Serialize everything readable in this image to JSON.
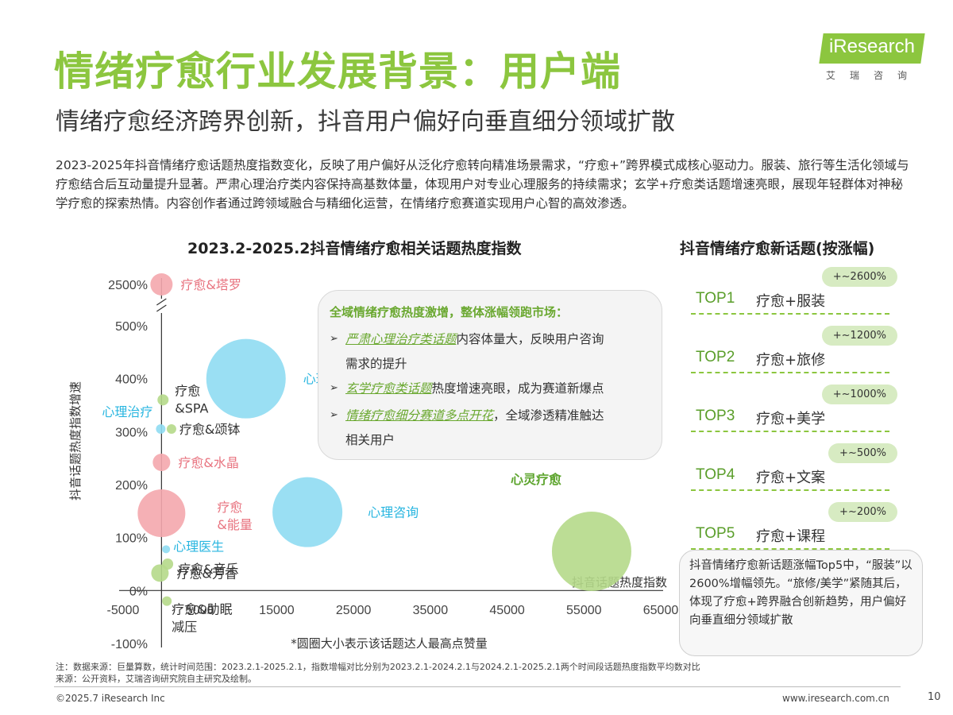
{
  "header": {
    "title": "情绪疗愈行业发展背景：用户端",
    "subtitle": "情绪疗愈经济跨界创新，抖音用户偏好向垂直细分领域扩散",
    "logo_text": "iResearch",
    "logo_sub": "艾瑞咨询"
  },
  "paragraph": "2023-2025年抖音情绪疗愈话题热度指数变化，反映了用户偏好从泛化疗愈转向精准场景需求，“疗愈+”跨界模式成核心驱动力。服装、旅行等生活化领域与疗愈结合后互动量提升显著。严肃心理治疗类内容保持高基数体量，体现用户对专业心理服务的持续需求；玄学+疗愈类话题增速亮眼，展现年轻群体对神秘学疗愈的探索热情。内容创作者通过跨领域融合与精细化运营，在情绪疗愈赛道实现用户心智的高效渗透。",
  "chart_data": {
    "type": "scatter",
    "title": "2023.2-2025.2抖音情绪疗愈相关话题热度指数",
    "xlabel": "抖音话题热度指数",
    "ylabel": "抖音话题热度指数增速",
    "x_ticks": [
      "-5000",
      "5000",
      "15000",
      "25000",
      "35000",
      "45000",
      "55000",
      "65000"
    ],
    "y_ticks": [
      "2500%",
      "500%",
      "400%",
      "300%",
      "200%",
      "100%",
      "0%",
      "-100%"
    ],
    "xlim": [
      -5000,
      65000
    ],
    "ylim": [
      -100,
      500
    ],
    "y_axis_break_top": 2500,
    "note": "*圆圈大小表示该话题达人最高点赞量",
    "colors": {
      "pink": "#f4a7ad",
      "blue": "#8fdcf2",
      "green": "#b5d98a",
      "pink_text": "#e8737f",
      "blue_text": "#29b6e0",
      "green_text": "#5ea52f"
    },
    "points": [
      {
        "label": "疗愈&塔罗",
        "x": 0,
        "y": 2500,
        "size": 14,
        "color": "pink"
      },
      {
        "label": "心理疏导",
        "x": 11000,
        "y": 400,
        "size": 50,
        "color": "blue"
      },
      {
        "label": "疗愈&SPA",
        "x": 200,
        "y": 360,
        "size": 7,
        "color": "green"
      },
      {
        "label": "心理治疗",
        "x": -100,
        "y": 305,
        "size": 6,
        "color": "blue"
      },
      {
        "label": "疗愈&颂钵",
        "x": 1300,
        "y": 305,
        "size": 6,
        "color": "green"
      },
      {
        "label": "疗愈&水晶",
        "x": 0,
        "y": 242,
        "size": 11,
        "color": "pink"
      },
      {
        "label": "疗愈&能量",
        "x": 0,
        "y": 146,
        "size": 30,
        "color": "pink"
      },
      {
        "label": "心理咨询",
        "x": 19000,
        "y": 148,
        "size": 44,
        "color": "blue"
      },
      {
        "label": "心理医生",
        "x": 600,
        "y": 78,
        "size": 5,
        "color": "blue"
      },
      {
        "label": "疗愈&音乐",
        "x": 800,
        "y": 50,
        "size": 7,
        "color": "green"
      },
      {
        "label": "疗愈&芳香",
        "x": -200,
        "y": 33,
        "size": 11,
        "color": "green"
      },
      {
        "label": "疗愈&助眠减压",
        "x": 700,
        "y": -20,
        "size": 6,
        "color": "green"
      },
      {
        "label": "心灵疗愈",
        "x": 56000,
        "y": 74,
        "size": 50,
        "color": "green"
      }
    ]
  },
  "callout": {
    "heading": "全域情绪疗愈热度激增，整体涨幅领跑市场：",
    "items": [
      {
        "em": "严肃心理治疗类话题",
        "rest": "内容体量大，反映用户咨询",
        "cont": "需求的提升"
      },
      {
        "em": "玄学疗愈类话题",
        "rest": "热度增速亮眼，成为赛道新爆点",
        "cont": ""
      },
      {
        "em": "情绪疗愈细分赛道多点开花",
        "rest": "，全域渗透精准触达",
        "cont": "相关用户"
      }
    ],
    "arrow": "➢"
  },
  "right_panel": {
    "title": "抖音情绪疗愈新话题(按涨幅)",
    "items": [
      {
        "rank": "TOP1",
        "name": "疗愈+服装",
        "growth": "+~2600%"
      },
      {
        "rank": "TOP2",
        "name": "疗愈+旅修",
        "growth": "+~1200%"
      },
      {
        "rank": "TOP3",
        "name": "疗愈+美学",
        "growth": "+~1000%"
      },
      {
        "rank": "TOP4",
        "name": "疗愈+文案",
        "growth": "+~500%"
      },
      {
        "rank": "TOP5",
        "name": "疗愈+课程",
        "growth": "+~200%"
      }
    ],
    "summary": "抖音情绪疗愈新话题涨幅Top5中，“服装”以2600%增幅领先。“旅修/美学”紧随其后，体现了疗愈+跨界融合创新趋势，用户偏好向垂直细分领域扩散"
  },
  "footer": {
    "note1": "注：数据来源：巨量算数，统计时间范围：2023.2.1-2025.2.1，指数增幅对比分别为2023.2.1-2024.2.1与2024.2.1-2025.2.1两个时间段话题热度指数平均数对比",
    "note2": "来源：公开资料，艾瑞咨询研究院自主研究及绘制。",
    "copyright": "©2025.7 iResearch Inc",
    "website": "www.iresearch.com.cn",
    "page": "10"
  }
}
